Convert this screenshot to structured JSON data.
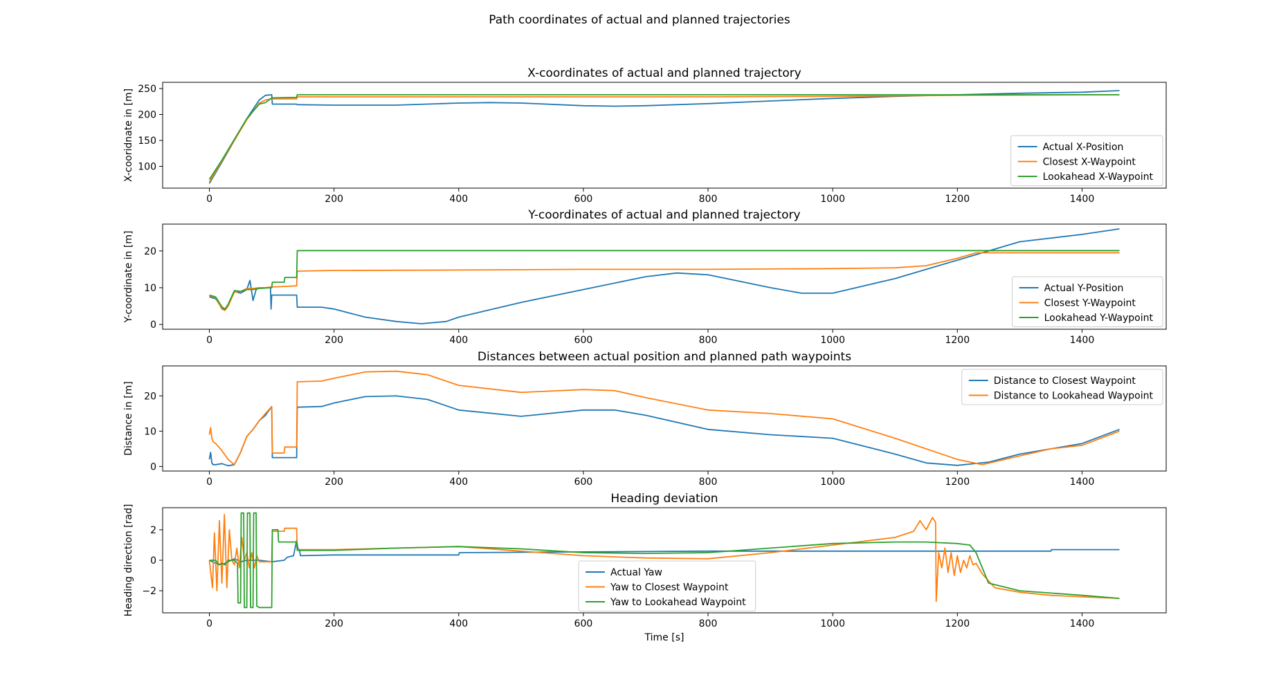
{
  "suptitle": "Path coordinates of actual and planned trajectories",
  "colors": {
    "blue": "#1f77b4",
    "orange": "#ff7f0e",
    "green": "#2ca02c"
  },
  "chart_data": [
    {
      "type": "line",
      "title": "X-coordinates of actual and planned trajectory",
      "xlabel": "",
      "ylabel": "X-cooridnate in [m]",
      "xlim": [
        -75,
        1535
      ],
      "ylim": [
        58,
        262
      ],
      "xticks": [
        0,
        200,
        400,
        600,
        800,
        1000,
        1200,
        1400
      ],
      "yticks": [
        100,
        150,
        200,
        250
      ],
      "legend": "lower-right",
      "series": [
        {
          "name": "Actual X-Position",
          "color": "#1f77b4",
          "x": [
            0,
            20,
            40,
            60,
            80,
            90,
            100,
            101,
            140,
            141,
            200,
            300,
            400,
            450,
            500,
            600,
            650,
            700,
            800,
            900,
            1000,
            1100,
            1200,
            1300,
            1400,
            1460
          ],
          "y": [
            67,
            108,
            150,
            192,
            228,
            237,
            238,
            220,
            220,
            219,
            218,
            218,
            222,
            223,
            222,
            217,
            216,
            217,
            221,
            226,
            231,
            235,
            238,
            241,
            243,
            246
          ]
        },
        {
          "name": "Closest X-Waypoint",
          "color": "#ff7f0e",
          "x": [
            0,
            20,
            40,
            60,
            80,
            90,
            100,
            110,
            140,
            141,
            200,
            400,
            600,
            800,
            1000,
            1200,
            1400,
            1460
          ],
          "y": [
            70,
            110,
            150,
            190,
            222,
            228,
            230,
            230,
            230,
            234,
            234,
            234,
            234,
            234,
            235,
            237,
            238,
            238
          ]
        },
        {
          "name": "Lookahead X-Waypoint",
          "color": "#2ca02c",
          "x": [
            0,
            20,
            40,
            60,
            80,
            90,
            100,
            140,
            141,
            200,
            400,
            600,
            800,
            1000,
            1200,
            1400,
            1460
          ],
          "y": [
            75,
            112,
            152,
            192,
            220,
            223,
            232,
            233,
            238,
            238,
            238,
            238,
            238,
            238,
            238,
            238,
            238
          ]
        }
      ]
    },
    {
      "type": "line",
      "title": "Y-coordinates of actual and planned trajectory",
      "xlabel": "",
      "ylabel": "Y-coordinate in [m]",
      "xlim": [
        -75,
        1535
      ],
      "ylim": [
        -1.3,
        27.3
      ],
      "xticks": [
        0,
        200,
        400,
        600,
        800,
        1000,
        1200,
        1400
      ],
      "yticks": [
        0,
        10,
        20
      ],
      "legend": "right",
      "series": [
        {
          "name": "Actual Y-Position",
          "color": "#1f77b4",
          "x": [
            0,
            10,
            20,
            25,
            30,
            40,
            50,
            60,
            65,
            70,
            75,
            80,
            90,
            98,
            99,
            100,
            101,
            140,
            141,
            180,
            200,
            250,
            300,
            340,
            380,
            400,
            500,
            600,
            700,
            750,
            800,
            900,
            950,
            1000,
            1100,
            1200,
            1300,
            1400,
            1460
          ],
          "y": [
            7.5,
            7.0,
            4.5,
            4.0,
            5.0,
            9.0,
            8.5,
            9.5,
            12.0,
            6.5,
            9.5,
            10.0,
            10.0,
            10.0,
            4.2,
            8.0,
            8.0,
            8.0,
            4.7,
            4.7,
            4.2,
            2.0,
            0.8,
            0.2,
            0.8,
            2.0,
            6.0,
            9.5,
            13.0,
            14.0,
            13.5,
            10.0,
            8.5,
            8.5,
            12.5,
            17.5,
            22.5,
            24.5,
            26.0
          ]
        },
        {
          "name": "Closest Y-Waypoint",
          "color": "#ff7f0e",
          "x": [
            0,
            10,
            20,
            25,
            30,
            40,
            50,
            60,
            70,
            80,
            90,
            100,
            140,
            141,
            200,
            400,
            600,
            800,
            1000,
            1100,
            1150,
            1200,
            1230,
            1460
          ],
          "y": [
            7.8,
            7.3,
            4.2,
            3.8,
            5.0,
            8.8,
            9.0,
            9.8,
            9.8,
            10.0,
            10.0,
            10.2,
            10.5,
            14.5,
            14.7,
            14.8,
            15.0,
            15.0,
            15.2,
            15.4,
            16.0,
            18.0,
            19.5,
            19.5
          ]
        },
        {
          "name": "Lookahead Y-Waypoint",
          "color": "#2ca02c",
          "x": [
            0,
            10,
            20,
            25,
            30,
            40,
            50,
            60,
            70,
            80,
            100,
            101,
            120,
            121,
            140,
            141,
            300,
            600,
            900,
            1200,
            1460
          ],
          "y": [
            8.0,
            7.5,
            4.8,
            4.2,
            5.5,
            9.2,
            9.0,
            9.5,
            9.5,
            9.8,
            10.0,
            11.5,
            11.5,
            12.8,
            12.8,
            20.1,
            20.1,
            20.1,
            20.1,
            20.1,
            20.1
          ]
        }
      ]
    },
    {
      "type": "line",
      "title": "Distances between actual position and planned path waypoints",
      "xlabel": "",
      "ylabel": "Distance in [m]",
      "xlim": [
        -75,
        1535
      ],
      "ylim": [
        -1.3,
        28.5
      ],
      "xticks": [
        0,
        200,
        400,
        600,
        800,
        1000,
        1200,
        1400
      ],
      "yticks": [
        0,
        10,
        20
      ],
      "legend": "top-right",
      "series": [
        {
          "name": "Distance to Closest Waypoint",
          "color": "#1f77b4",
          "x": [
            0,
            2,
            4,
            6,
            10,
            20,
            30,
            40,
            50,
            60,
            70,
            80,
            90,
            100,
            101,
            140,
            141,
            180,
            200,
            250,
            300,
            350,
            400,
            500,
            600,
            650,
            700,
            800,
            900,
            1000,
            1100,
            1150,
            1200,
            1250,
            1300,
            1350,
            1400,
            1460
          ],
          "y": [
            2.0,
            4.0,
            1.0,
            0.5,
            0.5,
            0.8,
            0.2,
            0.5,
            4.0,
            8.5,
            10.5,
            13.0,
            14.5,
            17.0,
            2.5,
            2.5,
            16.8,
            17.0,
            18.0,
            19.8,
            20.0,
            19.0,
            16.0,
            14.2,
            16.0,
            16.0,
            14.5,
            10.5,
            9.0,
            8.0,
            3.5,
            1.0,
            0.3,
            1.2,
            3.5,
            5.0,
            6.5,
            10.5
          ]
        },
        {
          "name": "Distance to Lookahead Waypoint",
          "color": "#ff7f0e",
          "x": [
            0,
            2,
            4,
            6,
            10,
            20,
            30,
            40,
            50,
            60,
            70,
            80,
            90,
            100,
            101,
            120,
            121,
            140,
            141,
            180,
            200,
            250,
            300,
            350,
            400,
            500,
            600,
            650,
            700,
            800,
            900,
            1000,
            1100,
            1200,
            1240,
            1300,
            1350,
            1400,
            1460
          ],
          "y": [
            9.0,
            11.0,
            8.0,
            7.0,
            6.5,
            4.5,
            2.0,
            0.5,
            4.0,
            8.5,
            10.5,
            13.0,
            15.0,
            17.0,
            3.8,
            3.8,
            5.5,
            5.5,
            24.0,
            24.2,
            25.0,
            26.8,
            27.0,
            26.0,
            23.0,
            21.0,
            21.8,
            21.5,
            19.5,
            16.0,
            15.0,
            13.5,
            8.0,
            2.0,
            0.5,
            3.0,
            5.0,
            6.0,
            10.0
          ]
        }
      ]
    },
    {
      "type": "line",
      "title": "Heading deviation",
      "xlabel": "Time [s]",
      "ylabel": "Heading direction [rad]",
      "xlim": [
        -75,
        1535
      ],
      "ylim": [
        -3.45,
        3.45
      ],
      "xticks": [
        0,
        200,
        400,
        600,
        800,
        1000,
        1200,
        1400
      ],
      "yticks": [
        -2,
        0,
        2
      ],
      "legend": "center",
      "series": [
        {
          "name": "Actual Yaw",
          "color": "#1f77b4",
          "x": [
            0,
            10,
            20,
            30,
            40,
            50,
            60,
            80,
            100,
            120,
            125,
            135,
            140,
            142,
            145,
            146,
            200,
            400,
            401,
            600,
            800,
            1000,
            1200,
            1350,
            1351,
            1460
          ],
          "y": [
            0.0,
            -0.2,
            -0.3,
            -0.1,
            0.1,
            -0.1,
            0.0,
            0.0,
            -0.1,
            0.0,
            0.2,
            0.3,
            1.3,
            0.8,
            0.6,
            0.3,
            0.35,
            0.35,
            0.5,
            0.55,
            0.6,
            0.6,
            0.6,
            0.6,
            0.7,
            0.7
          ]
        },
        {
          "name": "Yaw to Closest Waypoint",
          "color": "#ff7f0e",
          "x": [
            0,
            5,
            8,
            12,
            16,
            20,
            24,
            28,
            32,
            36,
            40,
            44,
            48,
            52,
            56,
            60,
            64,
            68,
            72,
            76,
            80,
            90,
            100,
            101,
            120,
            121,
            140,
            141,
            200,
            300,
            400,
            500,
            600,
            700,
            800,
            900,
            1000,
            1100,
            1130,
            1140,
            1150,
            1160,
            1165,
            1166,
            1170,
            1175,
            1180,
            1185,
            1190,
            1195,
            1200,
            1205,
            1210,
            1215,
            1220,
            1225,
            1230,
            1240,
            1260,
            1300,
            1350,
            1400,
            1460
          ],
          "y": [
            0.0,
            -1.8,
            1.8,
            -2.0,
            2.6,
            -1.5,
            3.0,
            -1.8,
            2.0,
            0.0,
            -0.3,
            0.8,
            -0.5,
            1.5,
            0.0,
            0.5,
            -0.5,
            0.5,
            -0.5,
            0.3,
            -0.1,
            -0.1,
            -0.1,
            1.9,
            1.9,
            2.1,
            2.1,
            0.7,
            0.7,
            0.8,
            0.9,
            0.6,
            0.3,
            0.15,
            0.1,
            0.5,
            1.0,
            1.5,
            1.9,
            2.6,
            2.0,
            2.8,
            2.5,
            -2.7,
            0.5,
            -0.5,
            0.8,
            -0.8,
            0.5,
            -1.0,
            0.3,
            -0.8,
            0.0,
            -0.5,
            0.3,
            -0.3,
            -0.2,
            -0.9,
            -1.8,
            -2.1,
            -2.3,
            -2.4,
            -2.5
          ]
        },
        {
          "name": "Yaw to Lookahead Waypoint",
          "color": "#2ca02c",
          "x": [
            0,
            10,
            15,
            20,
            25,
            30,
            40,
            45,
            46,
            50,
            51,
            55,
            56,
            60,
            61,
            65,
            66,
            70,
            71,
            75,
            76,
            80,
            100,
            101,
            110,
            111,
            140,
            141,
            200,
            300,
            400,
            500,
            600,
            700,
            800,
            900,
            1000,
            1100,
            1150,
            1200,
            1220,
            1230,
            1240,
            1250,
            1300,
            1400,
            1460
          ],
          "y": [
            0.0,
            0.0,
            -0.3,
            -0.2,
            -0.3,
            0.0,
            0.0,
            -0.2,
            -2.8,
            -2.8,
            3.1,
            3.1,
            -3.1,
            -3.1,
            3.1,
            3.1,
            -3.1,
            -3.1,
            3.1,
            3.1,
            -3.0,
            -3.1,
            -3.1,
            2.0,
            2.0,
            1.2,
            1.2,
            0.65,
            0.65,
            0.8,
            0.9,
            0.75,
            0.5,
            0.45,
            0.5,
            0.8,
            1.1,
            1.2,
            1.2,
            1.1,
            1.0,
            0.5,
            -0.5,
            -1.5,
            -2.0,
            -2.3,
            -2.5
          ]
        }
      ]
    }
  ]
}
